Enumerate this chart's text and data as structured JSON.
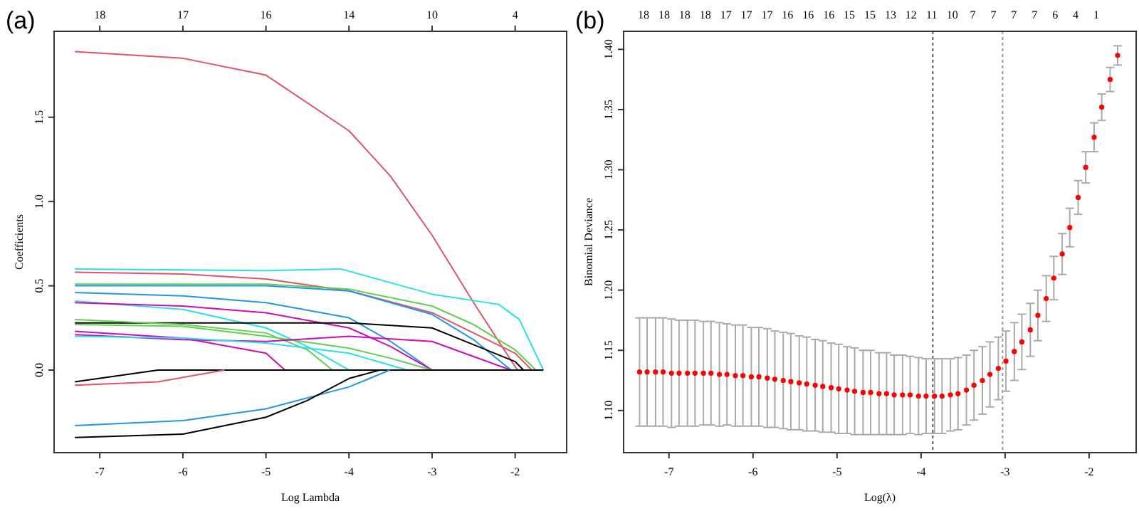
{
  "chart_data": [
    {
      "type": "line",
      "title": "(a)",
      "xlabel": "Log Lambda",
      "ylabel": "Coefficients",
      "xlim": [
        -7.55,
        -1.38
      ],
      "ylim": [
        -0.49,
        2.01
      ],
      "xticks": [
        -7,
        -6,
        -5,
        -4,
        -3,
        -2
      ],
      "yticks": [
        {
          "value": 0,
          "label": "0.0"
        },
        0.5,
        {
          "value": 1,
          "label": "1.0"
        },
        1.5
      ],
      "annotations": [
        "18",
        "17",
        "16",
        "14",
        "10",
        "4"
      ],
      "line_style": "solid",
      "series": [
        {
          "color": "#df536b",
          "x": [
            -7.3,
            -6,
            -5,
            -4,
            -3.5,
            -3,
            -2.5,
            -2,
            -1.97
          ],
          "values": [
            1.89,
            1.85,
            1.75,
            1.42,
            1.15,
            0.8,
            0.4,
            0.02,
            0
          ]
        },
        {
          "color": "#28e2e5",
          "x": [
            -7.3,
            -5,
            -4.1,
            -3,
            -2.2,
            -1.95,
            -1.66
          ],
          "values": [
            0.6,
            0.59,
            0.6,
            0.45,
            0.39,
            0.3,
            0
          ]
        },
        {
          "color": "#df536b",
          "x": [
            -7.3,
            -6,
            -5,
            -4,
            -3,
            -2.5,
            -2,
            -1.8
          ],
          "values": [
            0.58,
            0.57,
            0.54,
            0.47,
            0.34,
            0.22,
            0.1,
            0
          ]
        },
        {
          "color": "#61d04f",
          "x": [
            -7.3,
            -5,
            -4,
            -3,
            -2.5,
            -2,
            -1.75
          ],
          "values": [
            0.51,
            0.51,
            0.48,
            0.38,
            0.27,
            0.12,
            0
          ]
        },
        {
          "color": "#2297e6",
          "x": [
            -7.3,
            -5,
            -4,
            -3,
            -2.5,
            -2.05
          ],
          "values": [
            0.5,
            0.5,
            0.47,
            0.33,
            0.18,
            0
          ]
        },
        {
          "color": "#2297e6",
          "x": [
            -7.3,
            -6,
            -5,
            -4,
            -3.5,
            -3
          ],
          "values": [
            0.46,
            0.44,
            0.4,
            0.31,
            0.17,
            0
          ]
        },
        {
          "color": "#28e2e5",
          "x": [
            -7.3,
            -6,
            -5,
            -4.5,
            -4
          ],
          "values": [
            0.41,
            0.36,
            0.25,
            0.14,
            0
          ]
        },
        {
          "color": "#cd0bbc",
          "x": [
            -7.3,
            -6,
            -5,
            -4,
            -3.5,
            -3
          ],
          "values": [
            0.4,
            0.38,
            0.34,
            0.25,
            0.14,
            0
          ]
        },
        {
          "color": "#000000",
          "x": [
            -7.3,
            -5,
            -4,
            -3,
            -2.5,
            -2,
            -1.9
          ],
          "values": [
            0.28,
            0.28,
            0.28,
            0.25,
            0.15,
            0.05,
            0
          ]
        },
        {
          "color": "#61d04f",
          "x": [
            -7.3,
            -6,
            -5,
            -4.5,
            -4.2
          ],
          "values": [
            0.3,
            0.27,
            0.22,
            0.12,
            0
          ]
        },
        {
          "color": "#61d04f",
          "x": [
            -7.3,
            -6,
            -5,
            -4,
            -3.5,
            -3
          ],
          "values": [
            0.27,
            0.26,
            0.2,
            0.13,
            0.07,
            0
          ]
        },
        {
          "color": "#cd0bbc",
          "x": [
            -7.3,
            -6,
            -5,
            -4.77
          ],
          "values": [
            0.23,
            0.19,
            0.1,
            0
          ]
        },
        {
          "color": "#cd0bbc",
          "x": [
            -7.3,
            -6,
            -5,
            -4,
            -3,
            -2.5,
            -2.05
          ],
          "values": [
            0.21,
            0.18,
            0.17,
            0.2,
            0.17,
            0.08,
            0
          ]
        },
        {
          "color": "#28e2e5",
          "x": [
            -7.3,
            -6,
            -5,
            -4,
            -3.3
          ],
          "values": [
            0.2,
            0.19,
            0.16,
            0.1,
            0
          ]
        },
        {
          "color": "#000000",
          "x": [
            -7.3,
            -6.3,
            -1.66
          ],
          "values": [
            -0.07,
            0,
            0
          ]
        },
        {
          "color": "#df536b",
          "x": [
            -7.3,
            -6.3,
            -5.5
          ],
          "values": [
            -0.09,
            -0.07,
            0
          ]
        },
        {
          "color": "#2297e6",
          "x": [
            -7.3,
            -6,
            -5,
            -4,
            -3.51
          ],
          "values": [
            -0.33,
            -0.3,
            -0.23,
            -0.1,
            0
          ]
        },
        {
          "color": "#000000",
          "x": [
            -7.3,
            -6,
            -5,
            -4.5,
            -4,
            -3.63
          ],
          "values": [
            -0.4,
            -0.38,
            -0.28,
            -0.18,
            -0.05,
            0
          ]
        }
      ]
    },
    {
      "type": "scatter",
      "title": "(b)",
      "xlabel": "Log(λ)",
      "ylabel": "Binomial Deviance",
      "xlim": [
        -7.54,
        -1.44
      ],
      "ylim": [
        1.065,
        1.415
      ],
      "xticks": [
        -7,
        -6,
        -5,
        -4,
        -3,
        -2
      ],
      "yticks": [
        {
          "value": 1.1,
          "label": "1.10"
        },
        {
          "value": 1.15,
          "label": "1.15"
        },
        {
          "value": 1.2,
          "label": "1.20"
        },
        {
          "value": 1.25,
          "label": "1.25"
        },
        {
          "value": 1.3,
          "label": "1.30"
        },
        {
          "value": 1.35,
          "label": "1.35"
        },
        {
          "value": 1.4,
          "label": "1.40"
        }
      ],
      "annotations": [
        "18",
        "18",
        "18",
        "18",
        "17",
        "17",
        "17",
        "16",
        "16",
        "16",
        "15",
        "15",
        "13",
        "12",
        "11",
        "10",
        "7",
        "7",
        "7",
        "7",
        "6",
        "4",
        "1"
      ],
      "marker": "circle",
      "ref_lines": [
        {
          "axis": "x",
          "value": -3.86,
          "line_style": "dotted",
          "color": "#555555"
        },
        {
          "axis": "x",
          "value": -3.03,
          "line_style": "dotted",
          "color": "#999999"
        }
      ],
      "series": [
        {
          "color": "#ff0000",
          "x": [
            -7.35,
            -7.26,
            -7.16,
            -7.07,
            -6.97,
            -6.88,
            -6.78,
            -6.69,
            -6.59,
            -6.5,
            -6.4,
            -6.31,
            -6.21,
            -6.12,
            -6.02,
            -5.93,
            -5.83,
            -5.74,
            -5.64,
            -5.55,
            -5.45,
            -5.36,
            -5.26,
            -5.17,
            -5.07,
            -4.98,
            -4.88,
            -4.79,
            -4.69,
            -4.6,
            -4.5,
            -4.41,
            -4.32,
            -4.22,
            -4.13,
            -4.03,
            -3.94,
            -3.84,
            -3.75,
            -3.65,
            -3.56,
            -3.46,
            -3.37,
            -3.27,
            -3.18,
            -3.08,
            -2.99,
            -2.89,
            -2.8,
            -2.7,
            -2.61,
            -2.51,
            -2.42,
            -2.32,
            -2.23,
            -2.13,
            -2.04,
            -1.94,
            -1.85,
            -1.75,
            -1.66
          ],
          "values": [
            1.132,
            1.132,
            1.132,
            1.132,
            1.131,
            1.131,
            1.131,
            1.131,
            1.131,
            1.131,
            1.13,
            1.13,
            1.129,
            1.129,
            1.128,
            1.128,
            1.127,
            1.126,
            1.125,
            1.124,
            1.123,
            1.122,
            1.121,
            1.12,
            1.119,
            1.118,
            1.117,
            1.116,
            1.115,
            1.115,
            1.114,
            1.114,
            1.113,
            1.113,
            1.113,
            1.112,
            1.112,
            1.112,
            1.112,
            1.113,
            1.114,
            1.117,
            1.121,
            1.125,
            1.13,
            1.135,
            1.141,
            1.149,
            1.157,
            1.167,
            1.179,
            1.193,
            1.21,
            1.23,
            1.252,
            1.277,
            1.302,
            1.327,
            1.352,
            1.375,
            1.395
          ],
          "errors": [
            0.045,
            0.045,
            0.045,
            0.045,
            0.045,
            0.044,
            0.044,
            0.044,
            0.043,
            0.043,
            0.043,
            0.042,
            0.042,
            0.042,
            0.041,
            0.041,
            0.041,
            0.04,
            0.04,
            0.04,
            0.039,
            0.039,
            0.038,
            0.038,
            0.037,
            0.037,
            0.036,
            0.036,
            0.035,
            0.035,
            0.034,
            0.034,
            0.033,
            0.033,
            0.032,
            0.032,
            0.031,
            0.031,
            0.031,
            0.03,
            0.03,
            0.029,
            0.029,
            0.028,
            0.027,
            0.026,
            0.025,
            0.024,
            0.023,
            0.022,
            0.021,
            0.019,
            0.018,
            0.017,
            0.016,
            0.014,
            0.013,
            0.012,
            0.011,
            0.01,
            0.008
          ]
        }
      ]
    }
  ]
}
